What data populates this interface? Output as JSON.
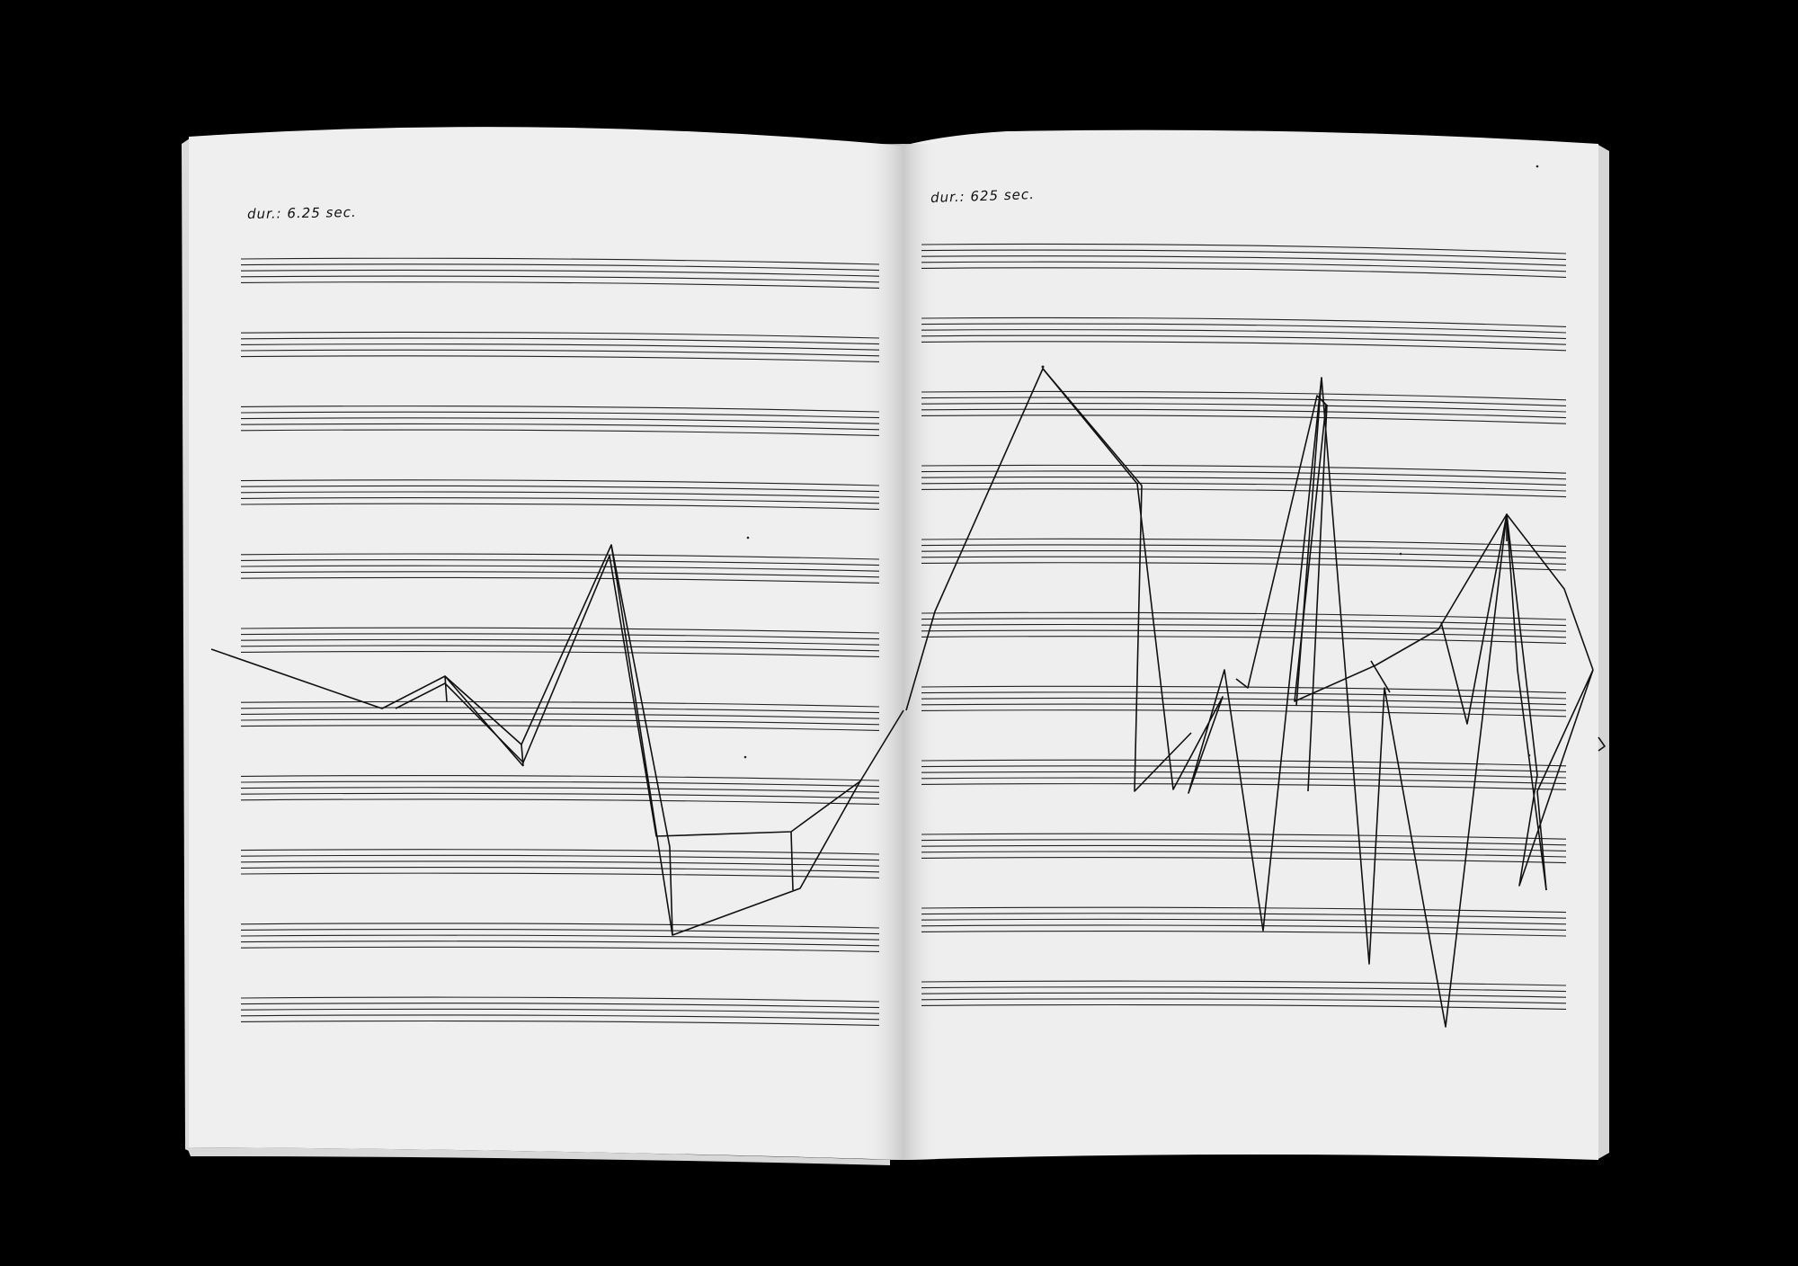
{
  "photo": {
    "subject": "open book with graphic music score"
  },
  "left_page": {
    "duration_label": "dur.:  6.25 sec.",
    "staff_count": 11
  },
  "right_page": {
    "duration_label": "dur.:  625 sec.",
    "staff_count": 11
  },
  "colors": {
    "background": "#000000",
    "paper": "#efefef",
    "ink": "#111111"
  }
}
